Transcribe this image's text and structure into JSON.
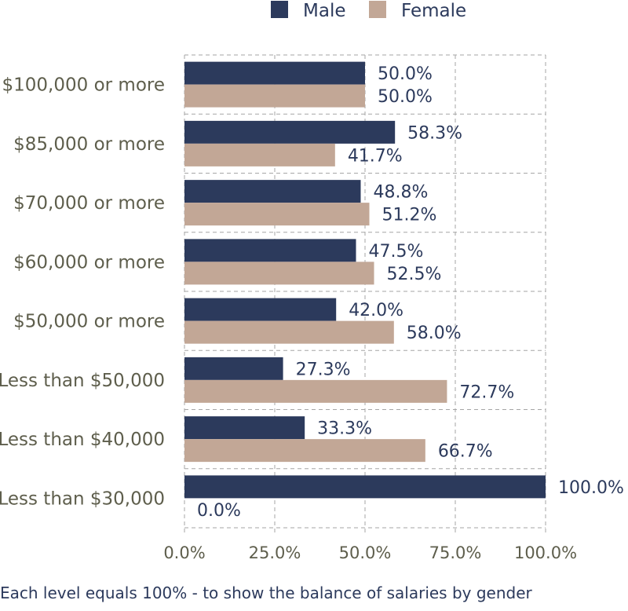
{
  "chart_data": {
    "type": "bar",
    "orientation": "horizontal",
    "categories": [
      "$100,000 or more",
      "$85,000 or more",
      "$70,000 or more",
      "$60,000 or more",
      "$50,000 or more",
      "Less than $50,000",
      "Less than $40,000",
      "Less than $30,000"
    ],
    "series": [
      {
        "name": "Male",
        "color": "#2c3a5c",
        "values": [
          50.0,
          58.3,
          48.8,
          47.5,
          42.0,
          27.3,
          33.3,
          100.0
        ],
        "labels": [
          "50.0%",
          "58.3%",
          "48.8%",
          "47.5%",
          "42.0%",
          "27.3%",
          "33.3%",
          "100.0%"
        ]
      },
      {
        "name": "Female",
        "color": "#c2a796",
        "values": [
          50.0,
          41.7,
          51.2,
          52.5,
          58.0,
          72.7,
          66.7,
          0.0
        ],
        "labels": [
          "50.0%",
          "41.7%",
          "51.2%",
          "52.5%",
          "58.0%",
          "72.7%",
          "66.7%",
          "0.0%"
        ]
      }
    ],
    "x_ticks": [
      "0.0%",
      "25.0%",
      "50.0%",
      "75.0%",
      "100.0%"
    ],
    "x_tick_values": [
      0,
      25,
      50,
      75,
      100
    ],
    "xlim": [
      0,
      100
    ],
    "grid": true,
    "legend_position": "top-center",
    "caption": "Each level equals 100% - to show the balance of salaries by gender"
  }
}
